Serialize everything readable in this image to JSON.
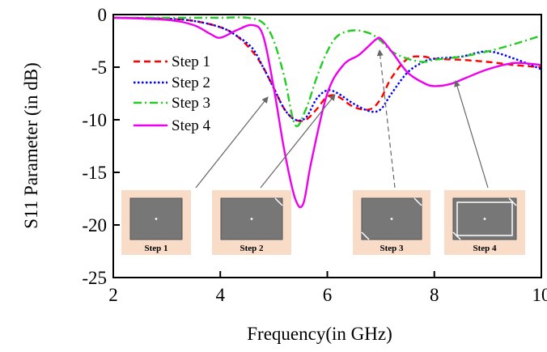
{
  "chart_data": {
    "type": "line",
    "xlabel": "Frequency(in GHz)",
    "ylabel": "S11 Parameter (in dB)",
    "xlim": [
      2,
      10
    ],
    "ylim": [
      -25,
      0
    ],
    "x_ticks": [
      "2",
      "4",
      "6",
      "8",
      "10"
    ],
    "y_ticks": [
      "0",
      "-5",
      "-10",
      "-15",
      "-20",
      "-25"
    ],
    "legend_position": "upper-left",
    "series": [
      {
        "name": "Step 1",
        "color": "#ff0000",
        "style": "dashed",
        "x": [
          2.0,
          3.0,
          3.5,
          4.0,
          4.3,
          4.6,
          4.8,
          5.0,
          5.2,
          5.4,
          5.6,
          5.8,
          6.0,
          6.2,
          6.5,
          6.8,
          7.0,
          7.2,
          7.5,
          7.8,
          8.0,
          8.5,
          9.0,
          9.5,
          10.0
        ],
        "y": [
          -0.3,
          -0.4,
          -0.6,
          -1.2,
          -2.0,
          -3.5,
          -5.0,
          -7.0,
          -9.0,
          -10.0,
          -10.0,
          -9.0,
          -7.8,
          -7.8,
          -8.8,
          -9.0,
          -8.0,
          -6.0,
          -4.2,
          -4.0,
          -4.2,
          -4.3,
          -4.5,
          -4.8,
          -5.0
        ]
      },
      {
        "name": "Step 2",
        "color": "#0000ff",
        "style": "dotted",
        "x": [
          2.0,
          3.0,
          3.5,
          4.0,
          4.3,
          4.6,
          4.8,
          5.0,
          5.2,
          5.4,
          5.6,
          5.8,
          6.0,
          6.2,
          6.5,
          6.8,
          7.0,
          7.2,
          7.5,
          7.8,
          8.0,
          8.5,
          9.0,
          9.5,
          10.0
        ],
        "y": [
          -0.3,
          -0.4,
          -0.6,
          -1.2,
          -2.0,
          -3.2,
          -5.0,
          -7.0,
          -9.0,
          -10.0,
          -9.8,
          -8.0,
          -7.2,
          -7.5,
          -8.5,
          -9.2,
          -9.0,
          -7.5,
          -5.5,
          -4.5,
          -4.2,
          -4.0,
          -3.5,
          -4.2,
          -5.2
        ]
      },
      {
        "name": "Step 3",
        "color": "#22cc22",
        "style": "dashdot",
        "x": [
          2.0,
          3.0,
          3.5,
          4.0,
          4.5,
          4.8,
          5.0,
          5.2,
          5.4,
          5.6,
          5.8,
          6.0,
          6.2,
          6.5,
          6.8,
          7.0,
          7.2,
          7.5,
          7.8,
          8.0,
          8.5,
          9.0,
          9.5,
          10.0
        ],
        "y": [
          -0.3,
          -0.3,
          -0.3,
          -0.3,
          -0.3,
          -0.8,
          -2.5,
          -6.0,
          -10.5,
          -9.0,
          -6.0,
          -3.5,
          -2.0,
          -1.5,
          -1.8,
          -2.5,
          -3.5,
          -4.2,
          -4.5,
          -4.3,
          -4.0,
          -3.5,
          -2.8,
          -2.0
        ]
      },
      {
        "name": "Step 4",
        "color": "#ee00ee",
        "style": "solid",
        "x": [
          2.0,
          3.0,
          3.5,
          3.8,
          4.0,
          4.3,
          4.6,
          4.8,
          5.0,
          5.2,
          5.4,
          5.55,
          5.7,
          6.0,
          6.3,
          6.6,
          6.9,
          7.0,
          7.2,
          7.5,
          7.8,
          8.0,
          8.3,
          8.6,
          9.0,
          9.5,
          10.0
        ],
        "y": [
          -0.3,
          -0.5,
          -1.0,
          -1.8,
          -2.2,
          -1.5,
          -1.0,
          -2.0,
          -7.0,
          -13.0,
          -17.5,
          -18.0,
          -14.0,
          -7.5,
          -4.8,
          -3.8,
          -2.4,
          -2.3,
          -3.5,
          -5.5,
          -6.5,
          -6.8,
          -6.6,
          -6.0,
          -5.2,
          -4.6,
          -4.8
        ]
      }
    ]
  },
  "insets": [
    {
      "label": "Step 1"
    },
    {
      "label": "Step 2"
    },
    {
      "label": "Step 3"
    },
    {
      "label": "Step 4"
    }
  ]
}
